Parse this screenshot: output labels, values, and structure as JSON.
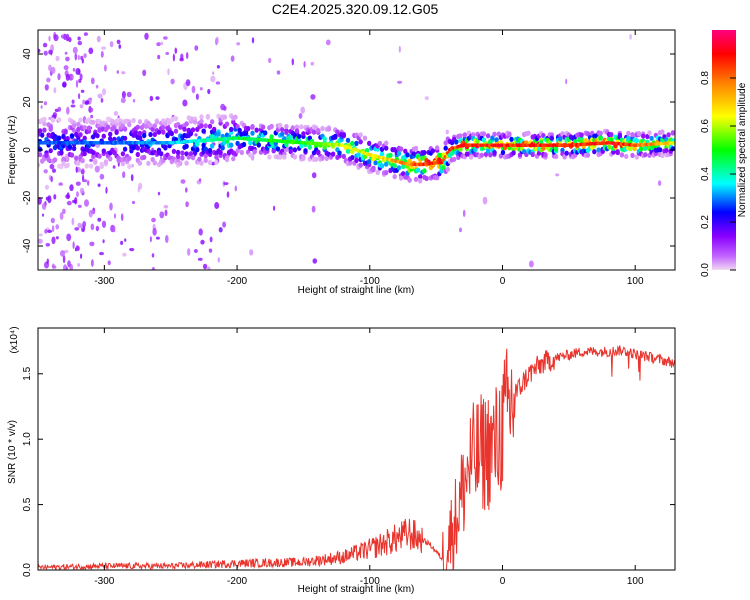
{
  "title": "C2E4.2025.320.09.12.G05",
  "chart_data": [
    {
      "type": "heatmap",
      "xlabel": "Height of straight line (km)",
      "ylabel": "Frequency (Hz)",
      "xlim": [
        -350,
        130
      ],
      "ylim": [
        -50,
        50
      ],
      "xticks": [
        -300,
        -200,
        -100,
        0,
        100
      ],
      "xtick_labels": [
        "-300",
        "-200",
        "-100",
        "0",
        "100"
      ],
      "yticks": [
        -40,
        -20,
        0,
        20,
        40
      ],
      "ytick_labels": [
        "-40",
        "-20",
        "0",
        "20",
        "40"
      ],
      "colorbar": {
        "label": "Normalized spectral amplitude",
        "range": [
          0,
          1
        ],
        "ticks": [
          0.0,
          0.2,
          0.4,
          0.6,
          0.8
        ],
        "tick_labels": [
          "0.0",
          "0.2",
          "0.4",
          "0.6",
          "0.8"
        ],
        "colors": [
          "#f2d8f2",
          "#8a00ff",
          "#0000ff",
          "#00ffff",
          "#00ff00",
          "#ffff00",
          "#ff8000",
          "#ff0000",
          "#ff0080"
        ]
      },
      "ridge": {
        "x": [
          -350,
          -300,
          -250,
          -200,
          -150,
          -120,
          -100,
          -85,
          -70,
          -60,
          -45,
          -40,
          -30,
          -20,
          0,
          50,
          80,
          100,
          130
        ],
        "frequency": [
          3,
          3,
          3,
          5,
          3,
          2,
          -2,
          -4,
          -6,
          -6,
          -5,
          0,
          2,
          2,
          2,
          2,
          3,
          2,
          3
        ],
        "peak_amplitude": [
          0.3,
          0.3,
          0.35,
          0.5,
          0.55,
          0.65,
          0.7,
          0.75,
          0.85,
          0.95,
          0.95,
          0.9,
          0.95,
          0.95,
          0.95,
          0.95,
          0.95,
          0.9,
          0.7
        ]
      }
    },
    {
      "type": "line",
      "xlabel": "Height of straight line (km)",
      "ylabel": "SNR (10 * v/v)",
      "y_scale_label": "(x10⁴)",
      "xlim": [
        -350,
        130
      ],
      "ylim": [
        0,
        1.85
      ],
      "xticks": [
        -300,
        -200,
        -100,
        0,
        100
      ],
      "xtick_labels": [
        "-300",
        "-200",
        "-100",
        "0",
        "100"
      ],
      "yticks": [
        0.0,
        0.5,
        1.0,
        1.5
      ],
      "ytick_labels": [
        "0.0",
        "0.5",
        "1.0",
        "1.5"
      ],
      "color": "#e8342c",
      "series": [
        {
          "name": "SNR",
          "x": [
            -350,
            -300,
            -250,
            -200,
            -150,
            -120,
            -100,
            -80,
            -70,
            -55,
            -45,
            -35,
            -25,
            -15,
            -5,
            0,
            10,
            20,
            30,
            40,
            60,
            80,
            90,
            100,
            110,
            130
          ],
          "y": [
            0.02,
            0.03,
            0.03,
            0.05,
            0.06,
            0.1,
            0.16,
            0.24,
            0.28,
            0.2,
            0.08,
            0.4,
            0.8,
            0.9,
            0.95,
            1.1,
            1.35,
            1.5,
            1.58,
            1.62,
            1.67,
            1.67,
            1.68,
            1.65,
            1.63,
            1.58
          ]
        }
      ]
    }
  ]
}
